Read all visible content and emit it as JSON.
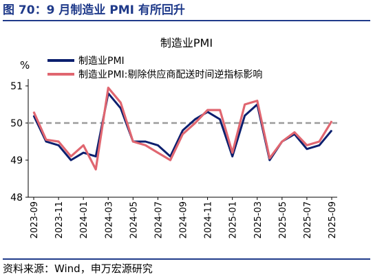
{
  "figure": {
    "title": "图 70：9 月制造业 PMI 有所回升",
    "source": "资料来源：Wind，申万宏源研究"
  },
  "chart_data": {
    "type": "line",
    "title": "制造业PMI",
    "ylabel": "%",
    "xlabel": "",
    "ylim": [
      48,
      51
    ],
    "yticks": [
      48,
      49,
      50,
      51
    ],
    "x": [
      "2023-09",
      "2023-10",
      "2023-11",
      "2023-12",
      "2024-01",
      "2024-02",
      "2024-03",
      "2024-04",
      "2024-05",
      "2024-06",
      "2024-07",
      "2024-08",
      "2024-09",
      "2024-10",
      "2024-11",
      "2024-12",
      "2025-01",
      "2025-02",
      "2025-03",
      "2025-04",
      "2025-05",
      "2025-06",
      "2025-07",
      "2025-08",
      "2025-09"
    ],
    "xtick_labels": [
      "2023-09",
      "2023-11",
      "2024-01",
      "2024-03",
      "2024-05",
      "2024-07",
      "2024-09",
      "2024-11",
      "2025-01",
      "2025-03",
      "2025-05",
      "2025-07",
      "2025-09"
    ],
    "series": [
      {
        "name": "制造业PMI",
        "color": "#0b1f6e",
        "values": [
          50.2,
          49.5,
          49.4,
          49.0,
          49.2,
          49.1,
          50.8,
          50.4,
          49.5,
          49.5,
          49.4,
          49.1,
          49.8,
          50.1,
          50.3,
          50.1,
          49.1,
          50.2,
          50.5,
          49.0,
          49.5,
          49.7,
          49.3,
          49.4,
          49.8
        ]
      },
      {
        "name": "制造业PMI:剔除供应商配送时间逆指标影响",
        "color": "#e06670",
        "values": [
          50.3,
          49.55,
          49.5,
          49.1,
          49.4,
          48.75,
          50.95,
          50.55,
          49.5,
          49.4,
          49.2,
          49.0,
          49.7,
          50.0,
          50.35,
          50.35,
          49.2,
          50.5,
          50.6,
          49.05,
          49.5,
          49.75,
          49.4,
          49.5,
          50.05
        ]
      }
    ],
    "reference_line": {
      "value": 50,
      "style": "dashed",
      "color": "#9a9a9a"
    },
    "legend_position": "top-left",
    "grid": false
  }
}
